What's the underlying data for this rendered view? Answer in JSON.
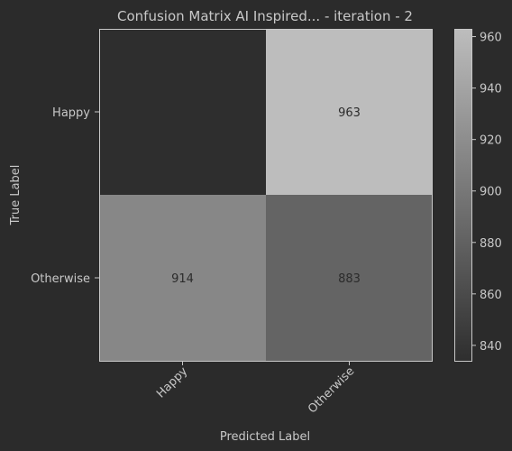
{
  "chart_data": {
    "type": "heatmap",
    "title": "Confusion Matrix AI Inspired... - iteration - 2",
    "xlabel": "Predicted Label",
    "ylabel": "True Label",
    "x_categories": [
      "Happy",
      "Otherwise"
    ],
    "y_categories": [
      "Happy",
      "Otherwise"
    ],
    "cell_labels": [
      [
        "",
        "963"
      ],
      [
        "914",
        "883"
      ]
    ],
    "values": [
      [
        834,
        963
      ],
      [
        914,
        883
      ]
    ],
    "colorbar": {
      "range": [
        834,
        963
      ],
      "ticks": [
        "840",
        "860",
        "880",
        "900",
        "920",
        "940",
        "960"
      ]
    },
    "colors": {
      "background": "#2b2b2b",
      "low": "#2e2e2e",
      "high": "#bdbdbd",
      "text": "#c8c8c8",
      "cell_text": "#2b2b2b"
    }
  }
}
